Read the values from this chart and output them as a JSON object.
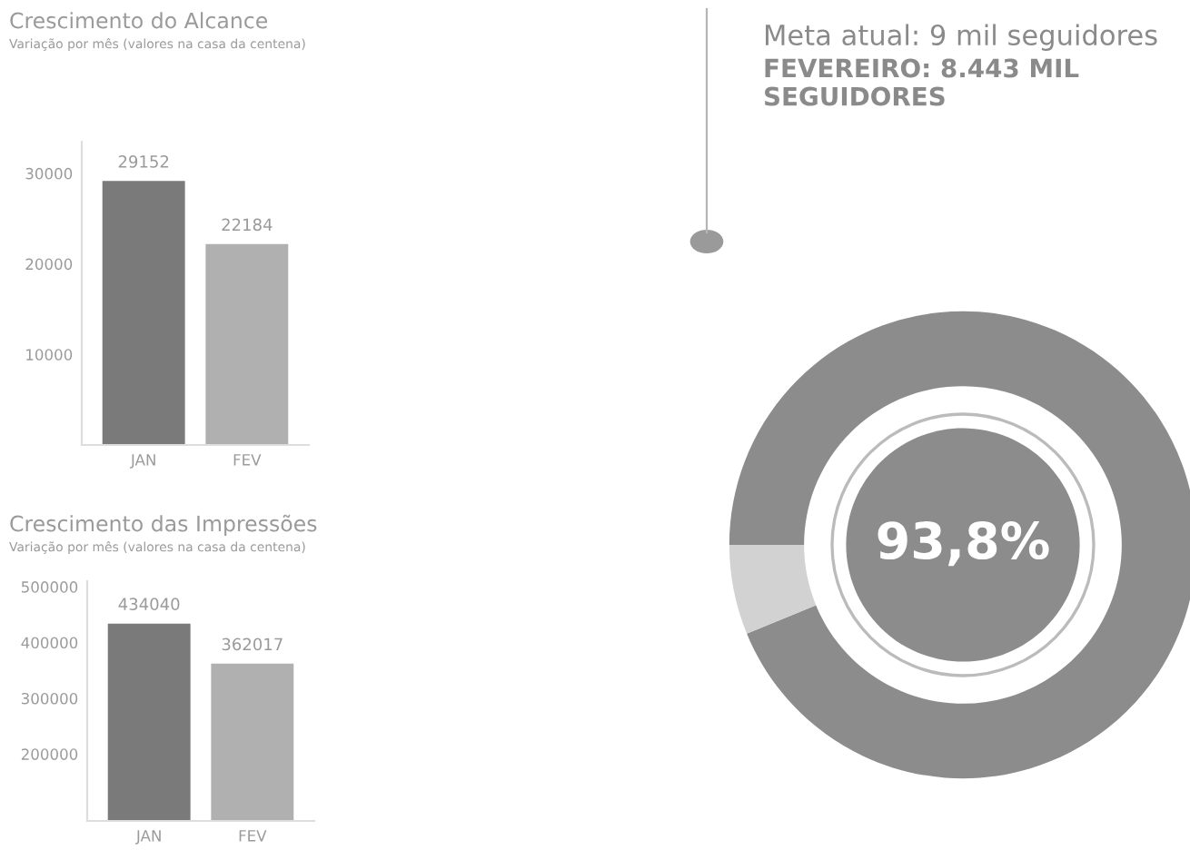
{
  "chart_data": [
    {
      "type": "bar",
      "title": "Crescimento do Alcance",
      "subtitle": "Variação por mês (valores na casa da centena)",
      "categories": [
        "JAN",
        "FEV"
      ],
      "colors": [
        "#7a7a7a",
        "#b0b0b0"
      ],
      "values": [
        29152,
        22184
      ],
      "data_labels": true,
      "ylim": [
        0,
        33500
      ],
      "yticks": [
        10000,
        20000,
        30000
      ]
    },
    {
      "type": "bar",
      "title": "Crescimento das Impressões",
      "subtitle": "Variação por mês (valores na casa da centena)",
      "categories": [
        "JAN",
        "FEV"
      ],
      "colors": [
        "#7a7a7a",
        "#b0b0b0"
      ],
      "values": [
        434040,
        362017
      ],
      "data_labels": true,
      "ylim": [
        80000,
        510000
      ],
      "yticks": [
        200000,
        300000,
        400000,
        500000
      ]
    },
    {
      "type": "donut",
      "title": "Meta atual: 9 mil seguidores",
      "subtitle": "FEVEREIRO: 8.443 MIL SEGUIDORES",
      "categories": [
        null,
        null
      ],
      "values": [
        93.8,
        6.2
      ],
      "colors": [
        "#8c8c8c",
        "#d2d2d2"
      ],
      "annotations": [
        "93,8%"
      ]
    }
  ]
}
